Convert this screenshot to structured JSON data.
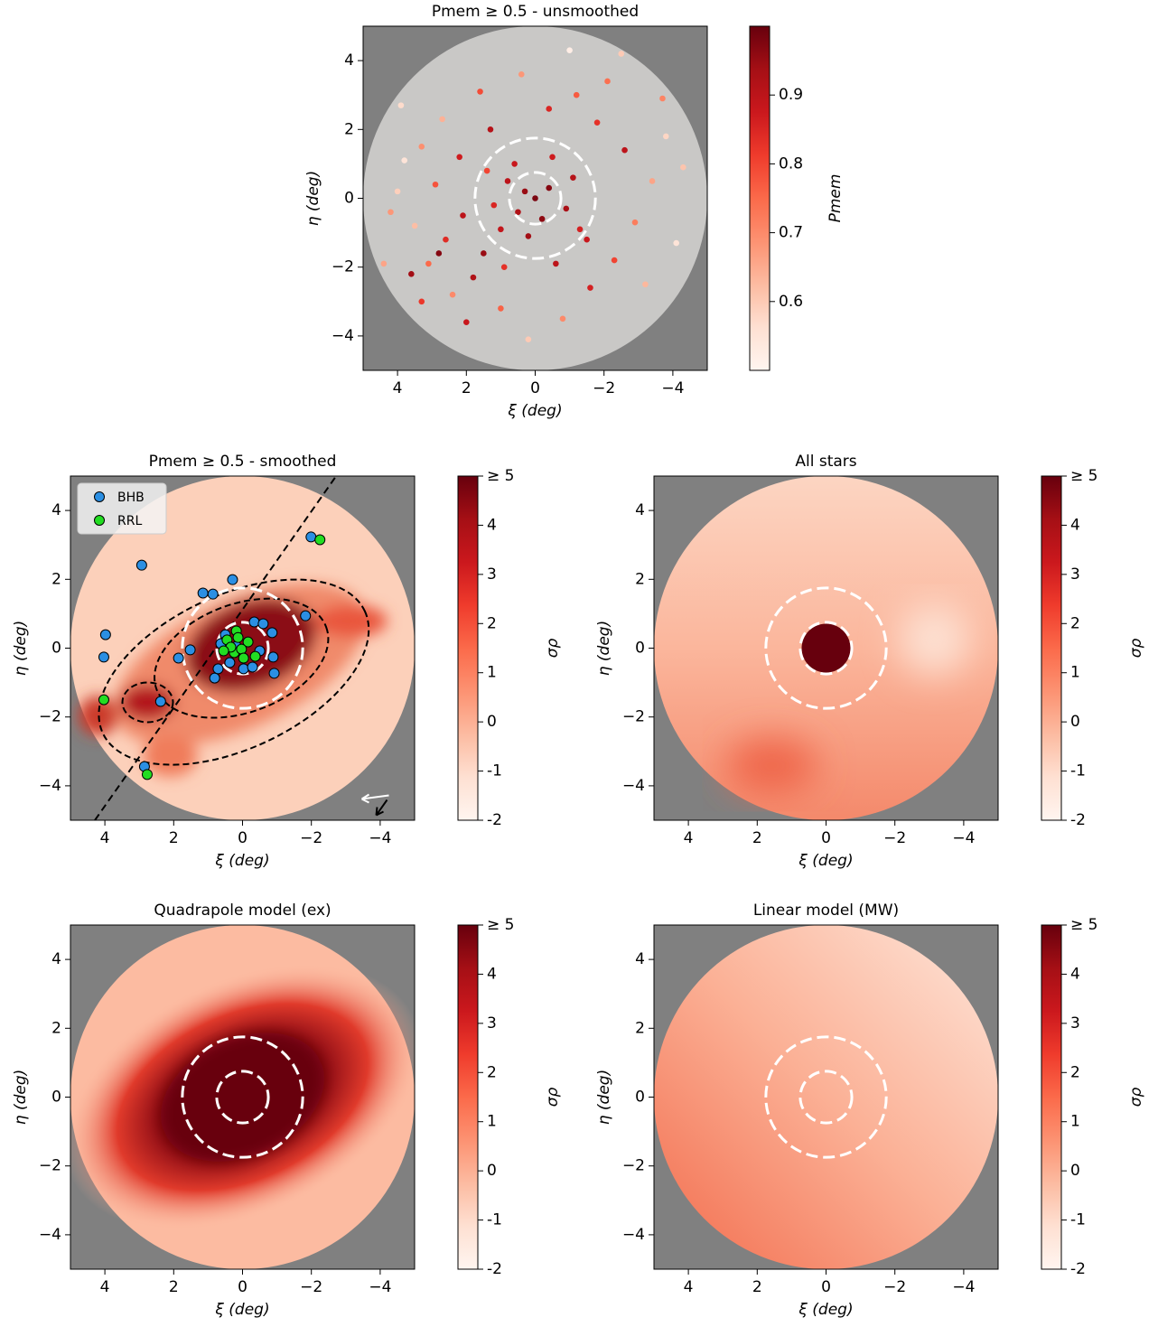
{
  "chart_data": [
    {
      "type": "scatter",
      "title": "Pmem ≥ 0.5 - unsmoothed",
      "x_label": "ξ (deg)",
      "y_label": "η (deg)",
      "xlim": [
        5,
        -5
      ],
      "ylim": [
        -5,
        5
      ],
      "xticks": [
        4,
        2,
        0,
        {
          "value": -2,
          "label": "−2"
        },
        {
          "value": -4,
          "label": "−4"
        }
      ],
      "yticks": [
        {
          "value": -4,
          "label": "−4"
        },
        {
          "value": -2,
          "label": "−2"
        },
        0,
        2,
        4
      ],
      "circle_radii": [
        0.75,
        1.75
      ],
      "colorbar": {
        "label": "Pmem",
        "lim": [
          0.5,
          1.0
        ],
        "ticks": [
          0.6,
          0.7,
          0.8,
          0.9
        ]
      },
      "series": [
        {
          "x": [
            0,
            0.3,
            -0.4,
            0.5,
            -0.2,
            0.8,
            -0.9,
            0.6,
            -1.1,
            1.2,
            -0.5,
            0.2,
            1.0,
            -1.3,
            1.4,
            2.1,
            2.6,
            3.1,
            2.4,
            1.8,
            3.5,
            2.9,
            3.8,
            4.2,
            3.3,
            2.0,
            1.0,
            0.2,
            -0.8,
            -1.6,
            -2.3,
            -2.9,
            -3.4,
            -2.6,
            -1.8,
            -3.8,
            -2.1,
            -2.5,
            -1.0,
            0.4,
            1.6,
            2.7,
            3.9,
            2.2,
            1.3,
            -0.4,
            -1.2,
            -3.2,
            -4.1,
            -3.7,
            4.4,
            3.6,
            2.8,
            1.5,
            -0.6,
            -1.5,
            0.9,
            4.0,
            3.3,
            -4.3
          ],
          "y": [
            0,
            0.2,
            0.3,
            -0.4,
            -0.6,
            0.5,
            -0.3,
            1.0,
            0.6,
            -0.2,
            1.2,
            -1.1,
            -0.9,
            -0.9,
            0.8,
            -0.5,
            -1.2,
            -1.9,
            -2.8,
            -2.3,
            -0.8,
            0.4,
            1.1,
            -0.4,
            -3.0,
            -3.6,
            -3.2,
            -4.1,
            -3.5,
            -2.6,
            -1.8,
            -0.7,
            0.5,
            1.4,
            2.2,
            1.8,
            3.4,
            4.2,
            4.3,
            3.6,
            3.1,
            2.3,
            2.7,
            1.2,
            2.0,
            2.6,
            3.0,
            -2.5,
            -1.3,
            2.9,
            -1.9,
            -2.2,
            -1.6,
            -1.6,
            -1.9,
            -1.2,
            -2.0,
            0.2,
            1.5,
            0.9
          ],
          "values": [
            0.98,
            0.95,
            0.97,
            0.92,
            0.96,
            0.9,
            0.93,
            0.88,
            0.91,
            0.85,
            0.87,
            0.94,
            0.89,
            0.86,
            0.8,
            0.9,
            0.84,
            0.75,
            0.7,
            0.92,
            0.62,
            0.78,
            0.55,
            0.68,
            0.82,
            0.88,
            0.76,
            0.6,
            0.7,
            0.86,
            0.8,
            0.72,
            0.66,
            0.9,
            0.83,
            0.58,
            0.74,
            0.6,
            0.52,
            0.68,
            0.79,
            0.64,
            0.57,
            0.87,
            0.91,
            0.85,
            0.77,
            0.63,
            0.55,
            0.71,
            0.66,
            0.94,
            0.97,
            0.95,
            0.9,
            0.88,
            0.83,
            0.59,
            0.69,
            0.61
          ]
        }
      ]
    },
    {
      "type": "heatmap",
      "title": "Pmem ≥ 0.5 - smoothed",
      "x_label": "ξ (deg)",
      "y_label": "η (deg)",
      "xlim": [
        5,
        -5
      ],
      "ylim": [
        -5,
        5
      ],
      "xticks": [
        4,
        2,
        0,
        {
          "value": -2,
          "label": "−2"
        },
        {
          "value": -4,
          "label": "−4"
        }
      ],
      "yticks": [
        {
          "value": -4,
          "label": "−4"
        },
        {
          "value": -2,
          "label": "−2"
        },
        0,
        2,
        4
      ],
      "circle_radii": [
        0.75,
        1.75
      ],
      "colorbar": {
        "label": "σρ",
        "lim": [
          -2,
          5
        ],
        "ticks": [
          -2,
          -1,
          0,
          1,
          2,
          3,
          4,
          {
            "value": 5,
            "label": "≥ 5"
          }
        ]
      },
      "legend": "upper left",
      "stream_line": {
        "x": [
          4.29,
          -2.72
        ],
        "y": [
          -5,
          5
        ]
      },
      "series": [
        {
          "name": "BHB",
          "color": "#2b8fe3",
          "x": [
            -1.99,
            2.93,
            0.29,
            1.15,
            0.86,
            -1.83,
            3.98,
            4.03,
            1.52,
            1.86,
            2.38,
            2.85,
            -0.86,
            -0.89,
            -0.92,
            -0.34,
            -0.6,
            0.81,
            0.71,
            0.37,
            -0.03,
            -0.29,
            0.18,
            0.5,
            -0.5,
            0.63
          ],
          "y": [
            3.23,
            2.41,
            1.99,
            1.6,
            1.57,
            0.94,
            0.39,
            -0.26,
            -0.05,
            -0.29,
            -1.55,
            -3.44,
            0.45,
            -0.26,
            -0.73,
            0.76,
            0.71,
            -0.87,
            -0.6,
            -0.42,
            -0.6,
            -0.55,
            0.05,
            0.39,
            -0.08,
            0.13
          ]
        },
        {
          "name": "RRL",
          "color": "#22dd22",
          "x": [
            -2.25,
            4.03,
            2.77,
            0.18,
            0.45,
            0.24,
            -0.16,
            0.03,
            0.34,
            -0.37,
            0.55,
            -0.03,
            0.13
          ],
          "y": [
            3.15,
            -1.5,
            -3.67,
            0.5,
            0.24,
            -0.13,
            0.18,
            -0.03,
            0.03,
            -0.24,
            -0.08,
            -0.29,
            0.31
          ]
        }
      ]
    },
    {
      "type": "heatmap",
      "title": "All stars",
      "x_label": "ξ (deg)",
      "y_label": "η (deg)",
      "xlim": [
        5,
        -5
      ],
      "ylim": [
        -5,
        5
      ],
      "xticks": [
        4,
        2,
        0,
        {
          "value": -2,
          "label": "−2"
        },
        {
          "value": -4,
          "label": "−4"
        }
      ],
      "yticks": [
        {
          "value": -4,
          "label": "−4"
        },
        {
          "value": -2,
          "label": "−2"
        },
        0,
        2,
        4
      ],
      "circle_radii": [
        0.75,
        1.75
      ],
      "colorbar": {
        "label": "σρ",
        "lim": [
          -2,
          5
        ],
        "ticks": [
          -2,
          -1,
          0,
          1,
          2,
          3,
          4,
          {
            "value": 5,
            "label": "≥ 5"
          }
        ]
      }
    },
    {
      "type": "heatmap",
      "title": "Quadrapole model (ex)",
      "x_label": "ξ (deg)",
      "y_label": "η (deg)",
      "xlim": [
        5,
        -5
      ],
      "ylim": [
        -5,
        5
      ],
      "xticks": [
        4,
        2,
        0,
        {
          "value": -2,
          "label": "−2"
        },
        {
          "value": -4,
          "label": "−4"
        }
      ],
      "yticks": [
        {
          "value": -4,
          "label": "−4"
        },
        {
          "value": -2,
          "label": "−2"
        },
        0,
        2,
        4
      ],
      "circle_radii": [
        0.75,
        1.75
      ],
      "colorbar": {
        "label": "σρ",
        "lim": [
          -2,
          5
        ],
        "ticks": [
          -2,
          -1,
          0,
          1,
          2,
          3,
          4,
          {
            "value": 5,
            "label": "≥ 5"
          }
        ]
      }
    },
    {
      "type": "heatmap",
      "title": "Linear model (MW)",
      "x_label": "ξ (deg)",
      "y_label": "η (deg)",
      "xlim": [
        5,
        -5
      ],
      "ylim": [
        -5,
        5
      ],
      "xticks": [
        4,
        2,
        0,
        {
          "value": -2,
          "label": "−2"
        },
        {
          "value": -4,
          "label": "−4"
        }
      ],
      "yticks": [
        {
          "value": -4,
          "label": "−4"
        },
        {
          "value": -2,
          "label": "−2"
        },
        0,
        2,
        4
      ],
      "circle_radii": [
        0.75,
        1.75
      ],
      "colorbar": {
        "label": "σρ",
        "lim": [
          -2,
          5
        ],
        "ticks": [
          -2,
          -1,
          0,
          1,
          2,
          3,
          4,
          {
            "value": 5,
            "label": "≥ 5"
          }
        ]
      }
    }
  ]
}
